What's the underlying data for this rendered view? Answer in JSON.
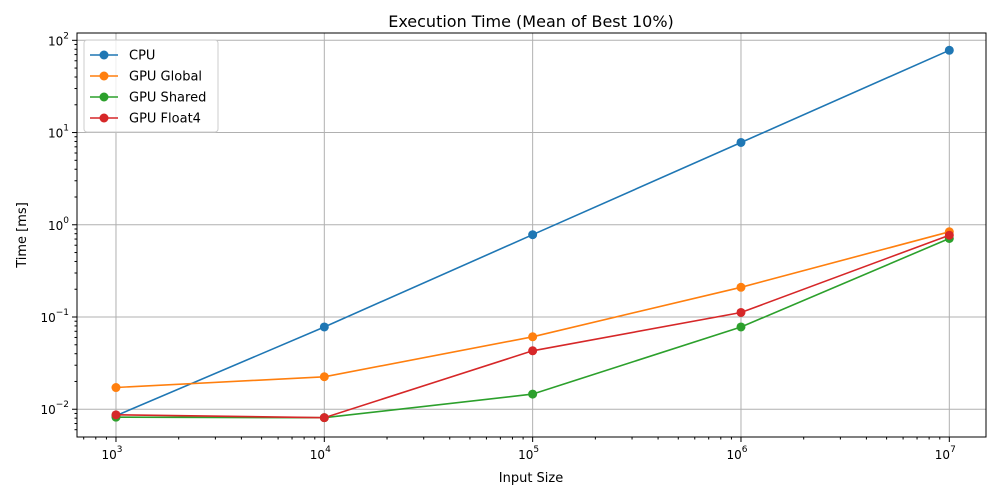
{
  "chart_data": {
    "type": "line",
    "title": "Execution Time (Mean of Best 10%)",
    "xlabel": "Input Size",
    "ylabel": "Time [ms]",
    "xscale": "log",
    "yscale": "log",
    "xlim": [
      650,
      15000000
    ],
    "ylim": [
      0.005,
      120
    ],
    "x": [
      1000,
      10000,
      100000,
      1000000,
      10000000
    ],
    "x_tick_values": [
      1000,
      10000,
      100000,
      1000000,
      10000000
    ],
    "x_tick_exponents": [
      "3",
      "4",
      "5",
      "6",
      "7"
    ],
    "y_tick_values": [
      0.01,
      0.1,
      1,
      10,
      100
    ],
    "y_tick_exponents": [
      "−2",
      "−1",
      "0",
      "1",
      "2"
    ],
    "tick_base": "10",
    "grid": true,
    "legend_position": "top-left",
    "series": [
      {
        "name": "CPU",
        "color": "#1f77b4",
        "values": [
          0.0085,
          0.078,
          0.78,
          7.8,
          78
        ]
      },
      {
        "name": "GPU Global",
        "color": "#ff7f0e",
        "values": [
          0.0172,
          0.0225,
          0.061,
          0.21,
          0.84
        ]
      },
      {
        "name": "GPU Shared",
        "color": "#2ca02c",
        "values": [
          0.0082,
          0.0081,
          0.0146,
          0.078,
          0.71
        ]
      },
      {
        "name": "GPU Float4",
        "color": "#d62728",
        "values": [
          0.0087,
          0.0081,
          0.043,
          0.112,
          0.77
        ]
      }
    ]
  }
}
